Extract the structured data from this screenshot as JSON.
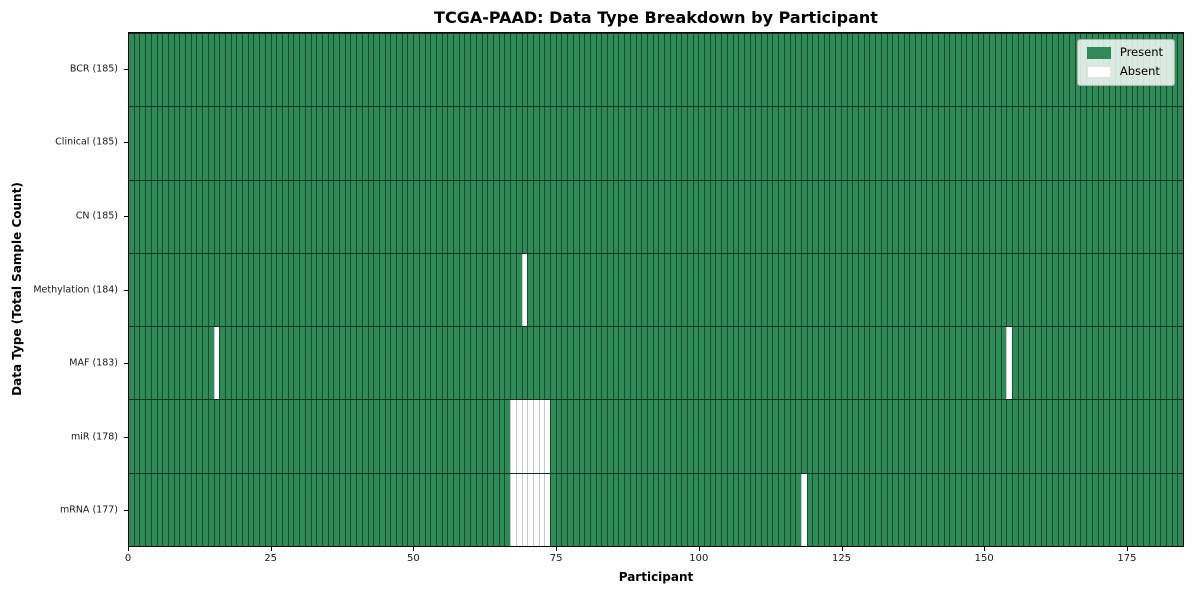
{
  "chart_data": {
    "type": "heatmap",
    "title": "TCGA-PAAD: Data Type Breakdown by Participant",
    "xlabel": "Participant",
    "ylabel": "Data Type (Total Sample Count)",
    "n_participants": 185,
    "xlim": [
      0,
      185
    ],
    "x_ticks": [
      0,
      25,
      50,
      75,
      100,
      125,
      150,
      175
    ],
    "grid": "off",
    "legend_position": "upper-right",
    "legend": [
      {
        "label": "Present",
        "color": "#2e8b57"
      },
      {
        "label": "Absent",
        "color": "#ffffff"
      }
    ],
    "colors": {
      "present": "#2e8b57",
      "absent": "#ffffff",
      "cell_edge_present": "rgba(0,0,0,0.45)",
      "cell_edge_absent": "#c9c9c9",
      "axes_frame": "#000000"
    },
    "rows": [
      {
        "label": "BCR (185)",
        "data_type": "BCR",
        "total_samples": 185,
        "absent_participants": []
      },
      {
        "label": "Clinical (185)",
        "data_type": "Clinical",
        "total_samples": 185,
        "absent_participants": []
      },
      {
        "label": "CN (185)",
        "data_type": "CN",
        "total_samples": 185,
        "absent_participants": []
      },
      {
        "label": "Methylation (184)",
        "data_type": "Methylation",
        "total_samples": 184,
        "absent_participants": [
          69
        ]
      },
      {
        "label": "MAF (183)",
        "data_type": "MAF",
        "total_samples": 183,
        "absent_participants": [
          15,
          154
        ]
      },
      {
        "label": "miR (178)",
        "data_type": "miR",
        "total_samples": 178,
        "absent_participants": [
          67,
          68,
          69,
          70,
          71,
          72,
          73
        ]
      },
      {
        "label": "mRNA (177)",
        "data_type": "mRNA",
        "total_samples": 177,
        "absent_participants": [
          67,
          68,
          69,
          70,
          71,
          72,
          73,
          118
        ]
      }
    ]
  }
}
